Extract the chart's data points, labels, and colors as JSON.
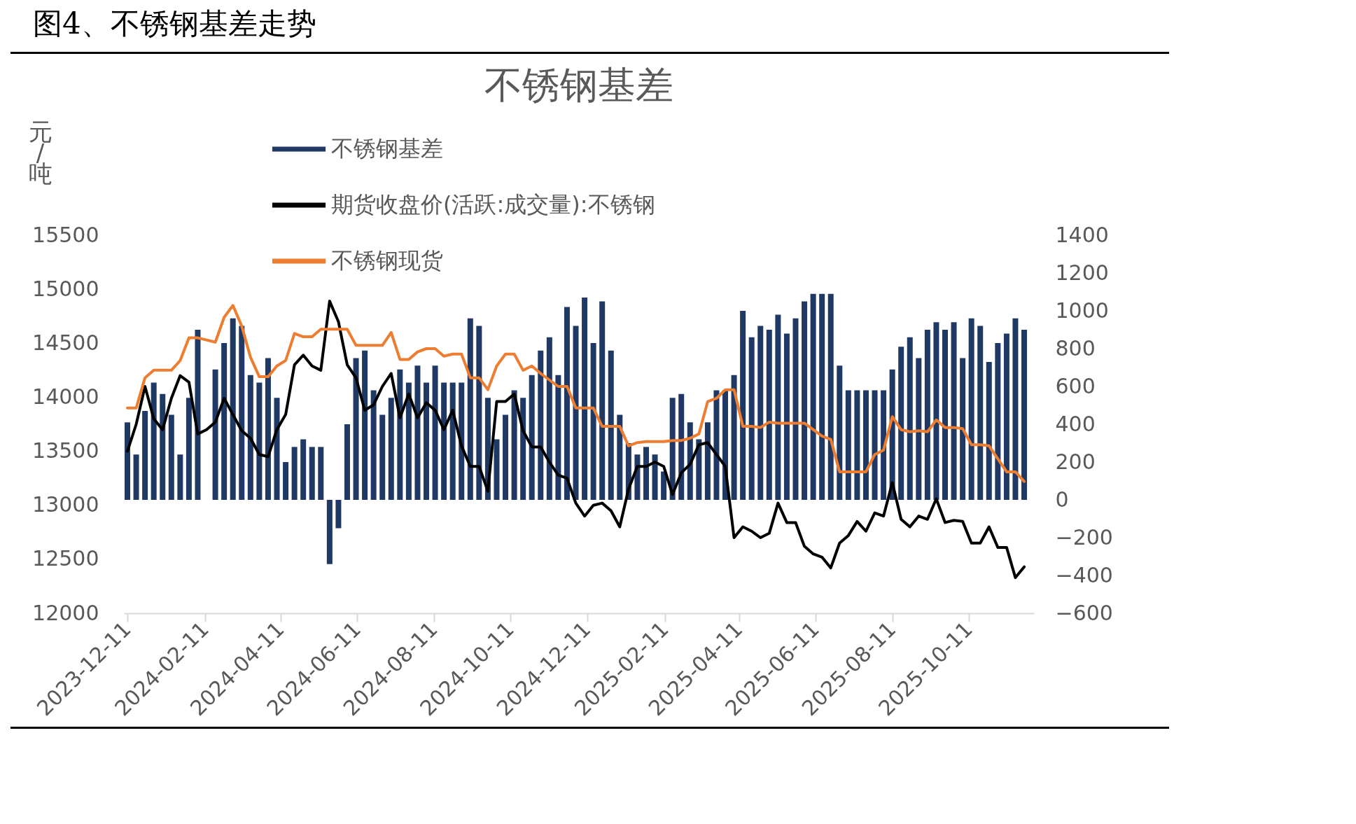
{
  "chart_data": {
    "type": "bar",
    "title": "图4、不锈钢基差走势",
    "subtitle": "不锈钢基差",
    "ylabel": "元/吨",
    "x": [
      "2023-12-11",
      "2023-12-18",
      "2023-12-25",
      "2024-01-01",
      "2024-01-08",
      "2024-01-15",
      "2024-01-22",
      "2024-01-29",
      "2024-02-05",
      "2024-02-12",
      "2024-02-19",
      "2024-02-26",
      "2024-03-04",
      "2024-03-11",
      "2024-03-18",
      "2024-03-25",
      "2024-04-01",
      "2024-04-08",
      "2024-04-15",
      "2024-04-22",
      "2024-04-29",
      "2024-05-06",
      "2024-05-13",
      "2024-05-20",
      "2024-05-27",
      "2024-06-03",
      "2024-06-10",
      "2024-06-17",
      "2024-06-24",
      "2024-07-01",
      "2024-07-08",
      "2024-07-15",
      "2024-07-22",
      "2024-07-29",
      "2024-08-05",
      "2024-08-12",
      "2024-08-19",
      "2024-08-26",
      "2024-09-02",
      "2024-09-09",
      "2024-09-16",
      "2024-09-23",
      "2024-09-30",
      "2024-10-07",
      "2024-10-14",
      "2024-10-21",
      "2024-10-28",
      "2024-11-04",
      "2024-11-11",
      "2024-11-18",
      "2024-11-25",
      "2024-12-02",
      "2024-12-09",
      "2024-12-16",
      "2024-12-23",
      "2024-12-30",
      "2025-01-06",
      "2025-01-13",
      "2025-01-20",
      "2025-01-27",
      "2025-02-03",
      "2025-02-10",
      "2025-02-17",
      "2025-02-24",
      "2025-03-03",
      "2025-03-10",
      "2025-03-17",
      "2025-03-24",
      "2025-03-31",
      "2025-04-07",
      "2025-04-14",
      "2025-04-21",
      "2025-04-28",
      "2025-05-05",
      "2025-05-12",
      "2025-05-19",
      "2025-05-26",
      "2025-06-02",
      "2025-06-09",
      "2025-06-16",
      "2025-06-23",
      "2025-06-30",
      "2025-07-07",
      "2025-07-14",
      "2025-07-21",
      "2025-07-28",
      "2025-08-04",
      "2025-08-11",
      "2025-08-18",
      "2025-08-25",
      "2025-09-01",
      "2025-09-08",
      "2025-09-15",
      "2025-09-22",
      "2025-09-29",
      "2025-10-06",
      "2025-10-13",
      "2025-10-20",
      "2025-10-27",
      "2025-11-03",
      "2025-11-10",
      "2025-11-17",
      "2025-11-24"
    ],
    "series": [
      {
        "name": "不锈钢基差",
        "axis": "y2",
        "color": "#203864",
        "values": [
          410,
          240,
          470,
          620,
          560,
          450,
          240,
          540,
          900,
          null,
          690,
          830,
          960,
          920,
          660,
          620,
          750,
          540,
          200,
          280,
          320,
          280,
          280,
          -340,
          -150,
          400,
          750,
          790,
          580,
          450,
          540,
          690,
          620,
          710,
          620,
          710,
          620,
          620,
          620,
          960,
          920,
          540,
          320,
          450,
          580,
          540,
          660,
          790,
          860,
          660,
          1020,
          920,
          1070,
          830,
          1050,
          790,
          450,
          300,
          240,
          280,
          240,
          150,
          540,
          560,
          410,
          320,
          410,
          580,
          580,
          660,
          1000,
          860,
          920,
          900,
          980,
          880,
          960,
          1050,
          1090,
          1090,
          1090,
          710,
          580,
          580,
          580,
          580,
          580,
          690,
          810,
          860,
          750,
          900,
          940,
          900,
          940,
          750,
          960,
          920,
          730,
          830,
          880,
          960,
          900
        ]
      },
      {
        "name": "期货收盘价(活跃:成交量):不锈钢",
        "type": "line",
        "color": "#000000",
        "values": [
          13500,
          13750,
          14100,
          13800,
          13700,
          13990,
          14200,
          14140,
          13660,
          13700,
          13770,
          13990,
          13840,
          13690,
          13620,
          13470,
          13450,
          13700,
          13840,
          14300,
          14390,
          14290,
          14250,
          14890,
          14700,
          14300,
          14180,
          13880,
          13930,
          14100,
          14220,
          13810,
          14030,
          13810,
          13950,
          13880,
          13700,
          13880,
          13550,
          13360,
          13360,
          13130,
          13960,
          13960,
          14030,
          13690,
          13540,
          13540,
          13400,
          13280,
          13250,
          13020,
          12900,
          13000,
          13020,
          12950,
          12800,
          13150,
          13360,
          13360,
          13400,
          13360,
          13100,
          13300,
          13380,
          13560,
          13580,
          13470,
          13360,
          12700,
          12800,
          12760,
          12700,
          12740,
          13020,
          12840,
          12840,
          12620,
          12550,
          12520,
          12420,
          12650,
          12720,
          12850,
          12760,
          12930,
          12900,
          13210,
          12870,
          12800,
          12900,
          12870,
          13060,
          12840,
          12860,
          12850,
          12650,
          12650,
          12800,
          12610,
          12610,
          12330,
          12430
        ]
      },
      {
        "name": "不锈钢现货",
        "type": "line",
        "color": "#ed7d31",
        "values": [
          13900,
          13900,
          14180,
          14250,
          14250,
          14250,
          14340,
          14550,
          14550,
          14530,
          14510,
          14740,
          14850,
          14660,
          14370,
          14190,
          14190,
          14290,
          14340,
          14590,
          14560,
          14560,
          14630,
          14630,
          14630,
          14630,
          14480,
          14480,
          14480,
          14480,
          14600,
          14350,
          14350,
          14420,
          14450,
          14450,
          14380,
          14400,
          14400,
          14180,
          14180,
          14070,
          14290,
          14400,
          14400,
          14250,
          14290,
          14220,
          14160,
          14100,
          14100,
          13900,
          13900,
          13900,
          13730,
          13730,
          13730,
          13550,
          13580,
          13590,
          13590,
          13590,
          13600,
          13600,
          13620,
          13660,
          13960,
          13990,
          14070,
          14070,
          13730,
          13730,
          13720,
          13770,
          13760,
          13760,
          13760,
          13760,
          13700,
          13640,
          13610,
          13310,
          13310,
          13310,
          13310,
          13470,
          13510,
          13820,
          13700,
          13680,
          13690,
          13680,
          13790,
          13720,
          13720,
          13710,
          13560,
          13560,
          13550,
          13430,
          13310,
          13310,
          13220
        ]
      }
    ],
    "xlim": [
      "2023-12-11",
      "2025-11-29"
    ],
    "xticks": [
      "2023-12-11",
      "2024-02-11",
      "2024-04-11",
      "2024-06-11",
      "2024-08-11",
      "2024-10-11",
      "2024-12-11",
      "2025-02-11",
      "2025-04-11",
      "2025-06-11",
      "2025-08-11",
      "2025-10-11"
    ],
    "ylim": [
      12000,
      15500
    ],
    "yticks": [
      12000,
      12500,
      13000,
      13500,
      14000,
      14500,
      15000,
      15500
    ],
    "y2lim": [
      -600,
      1400
    ],
    "y2ticks": [
      -600,
      -400,
      -200,
      0,
      200,
      400,
      600,
      800,
      1000,
      1200,
      1400
    ],
    "legend": "top"
  }
}
